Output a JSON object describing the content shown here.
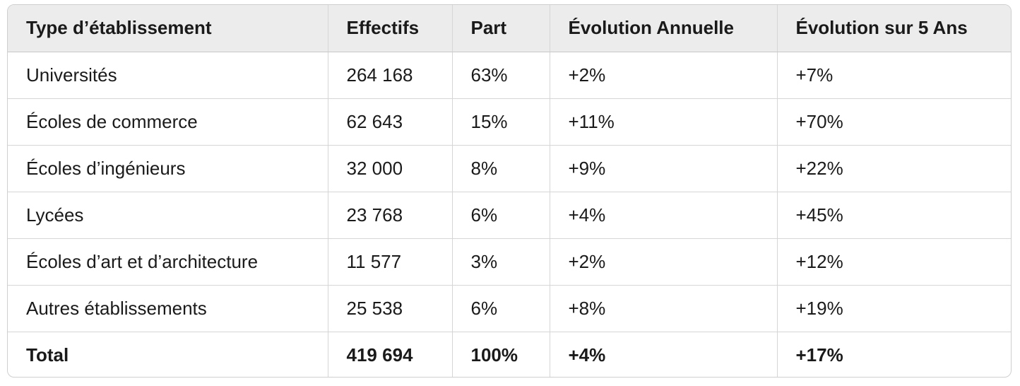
{
  "table": {
    "headers": [
      "Type d’établissement",
      "Effectifs",
      "Part",
      "Évolution Annuelle",
      "Évolution sur 5 Ans"
    ],
    "rows": [
      [
        "Universités",
        "264 168",
        "63%",
        "+2%",
        "+7%"
      ],
      [
        "Écoles de commerce",
        "62 643",
        "15%",
        "+11%",
        "+70%"
      ],
      [
        "Écoles d’ingénieurs",
        "32 000",
        "8%",
        "+9%",
        "+22%"
      ],
      [
        "Lycées",
        "23 768",
        "6%",
        "+4%",
        "+45%"
      ],
      [
        "Écoles d’art et d’architecture",
        "11 577",
        "3%",
        "+2%",
        "+12%"
      ],
      [
        "Autres établissements",
        "25 538",
        "6%",
        "+8%",
        "+19%"
      ],
      [
        "Total",
        "419 694",
        "100%",
        "+4%",
        "+17%"
      ]
    ]
  }
}
